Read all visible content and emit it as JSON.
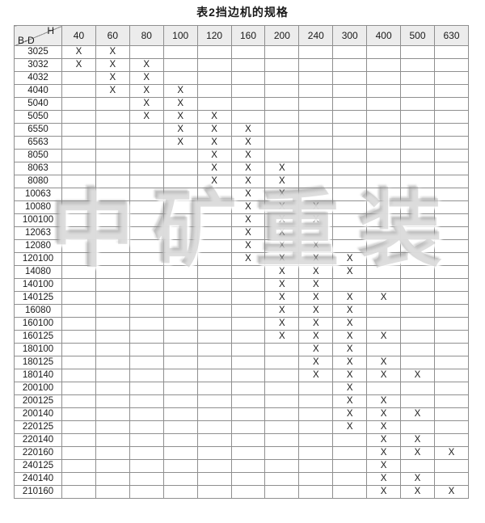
{
  "title": "表2挡边机的规格",
  "watermark": "中矿重装",
  "colors": {
    "grid_line": "#8f8f8f",
    "header_bg": "#ececec",
    "text": "#1a1a1a",
    "watermark_gray": "#919191"
  },
  "table": {
    "corner": {
      "top": "H",
      "bottom": "B·D"
    },
    "columns": [
      "40",
      "60",
      "80",
      "100",
      "120",
      "160",
      "200",
      "240",
      "300",
      "400",
      "500",
      "630"
    ],
    "mark": "X",
    "rows": [
      {
        "label": "3025",
        "marks": [
          "40",
          "60"
        ]
      },
      {
        "label": "3032",
        "marks": [
          "40",
          "60",
          "80"
        ]
      },
      {
        "label": "4032",
        "marks": [
          "60",
          "80"
        ]
      },
      {
        "label": "4040",
        "marks": [
          "60",
          "80",
          "100"
        ]
      },
      {
        "label": "5040",
        "marks": [
          "80",
          "100"
        ]
      },
      {
        "label": "5050",
        "marks": [
          "80",
          "100",
          "120"
        ]
      },
      {
        "label": "6550",
        "marks": [
          "100",
          "120",
          "160"
        ]
      },
      {
        "label": "6563",
        "marks": [
          "100",
          "120",
          "160"
        ]
      },
      {
        "label": "8050",
        "marks": [
          "120",
          "160"
        ]
      },
      {
        "label": "8063",
        "marks": [
          "120",
          "160",
          "200"
        ]
      },
      {
        "label": "8080",
        "marks": [
          "120",
          "160",
          "200"
        ]
      },
      {
        "label": "10063",
        "marks": [
          "160",
          "200"
        ]
      },
      {
        "label": "10080",
        "marks": [
          "160",
          "200",
          "240"
        ]
      },
      {
        "label": "100100",
        "marks": [
          "160",
          "200",
          "240"
        ]
      },
      {
        "label": "12063",
        "marks": [
          "160",
          "200"
        ]
      },
      {
        "label": "12080",
        "marks": [
          "160",
          "200",
          "240"
        ]
      },
      {
        "label": "120100",
        "marks": [
          "160",
          "200",
          "240",
          "300"
        ]
      },
      {
        "label": "14080",
        "marks": [
          "200",
          "240",
          "300"
        ]
      },
      {
        "label": "140100",
        "marks": [
          "200",
          "240"
        ]
      },
      {
        "label": "140125",
        "marks": [
          "200",
          "240",
          "300",
          "400"
        ]
      },
      {
        "label": "16080",
        "marks": [
          "200",
          "240",
          "300"
        ]
      },
      {
        "label": "160100",
        "marks": [
          "200",
          "240",
          "300"
        ]
      },
      {
        "label": "160125",
        "marks": [
          "200",
          "240",
          "300",
          "400"
        ]
      },
      {
        "label": "180100",
        "marks": [
          "240",
          "300"
        ]
      },
      {
        "label": "180125",
        "marks": [
          "240",
          "300",
          "400"
        ]
      },
      {
        "label": "180140",
        "marks": [
          "240",
          "300",
          "400",
          "500"
        ]
      },
      {
        "label": "200100",
        "marks": [
          "300"
        ]
      },
      {
        "label": "200125",
        "marks": [
          "300",
          "400"
        ]
      },
      {
        "label": "200140",
        "marks": [
          "300",
          "400",
          "500"
        ]
      },
      {
        "label": "220125",
        "marks": [
          "300",
          "400"
        ]
      },
      {
        "label": "220140",
        "marks": [
          "400",
          "500"
        ]
      },
      {
        "label": "220160",
        "marks": [
          "400",
          "500",
          "630"
        ]
      },
      {
        "label": "240125",
        "marks": [
          "400"
        ]
      },
      {
        "label": "240140",
        "marks": [
          "400",
          "500"
        ]
      },
      {
        "label": "210160",
        "marks": [
          "400",
          "500",
          "630"
        ]
      }
    ]
  }
}
